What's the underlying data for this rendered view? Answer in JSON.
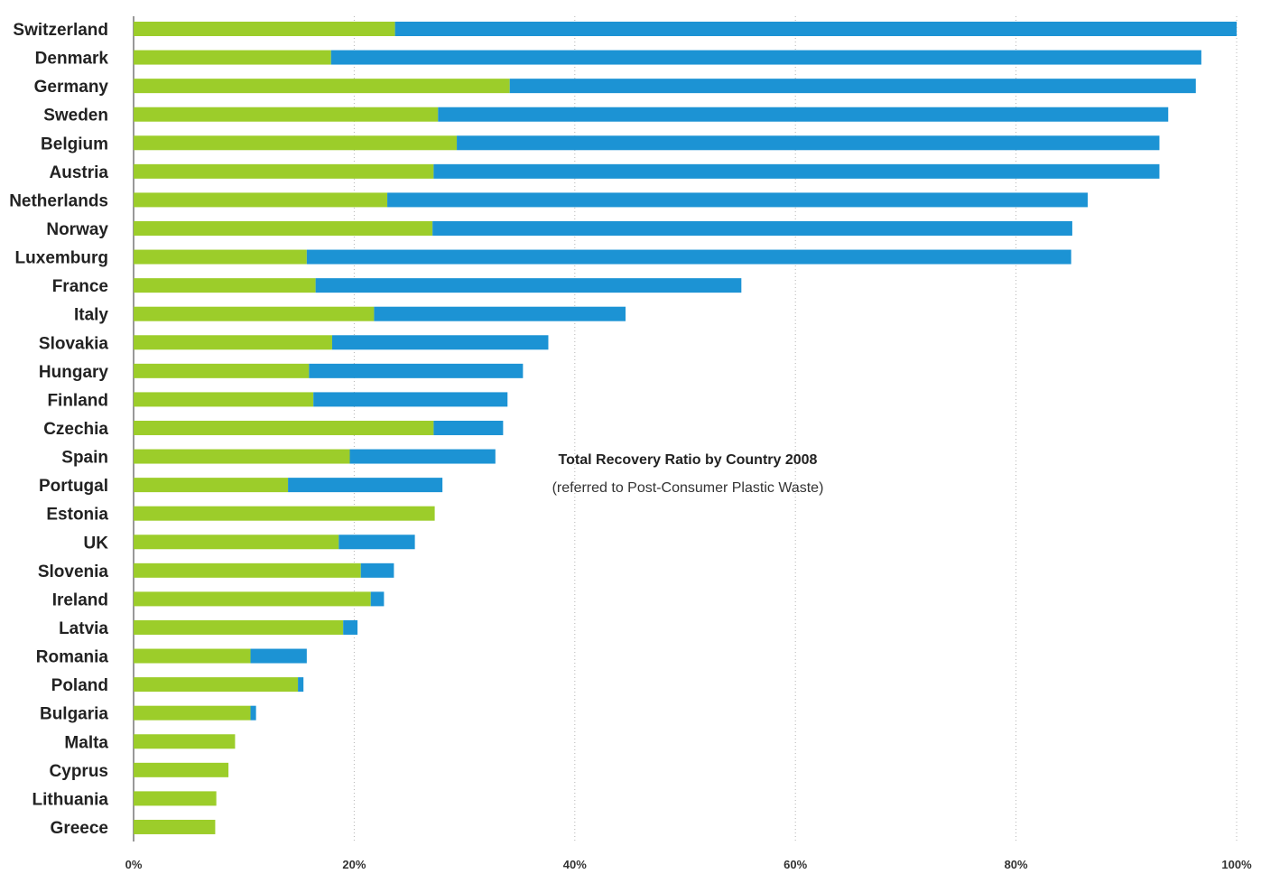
{
  "chart_data": {
    "type": "bar",
    "orientation": "horizontal",
    "stacked": true,
    "title": "Total Recovery Ratio by Country 2008",
    "subtitle": "(referred to Post-Consumer Plastic Waste)",
    "xlim": [
      0,
      100
    ],
    "x_ticks": [
      "0%",
      "20%",
      "40%",
      "60%",
      "80%",
      "100%"
    ],
    "grid": "vertical dotted",
    "categories": [
      "Switzerland",
      "Denmark",
      "Germany",
      "Sweden",
      "Belgium",
      "Austria",
      "Netherlands",
      "Norway",
      "Luxemburg",
      "France",
      "Italy",
      "Slovakia",
      "Hungary",
      "Finland",
      "Czechia",
      "Spain",
      "Portugal",
      "Estonia",
      "UK",
      "Slovenia",
      "Ireland",
      "Latvia",
      "Romania",
      "Poland",
      "Bulgaria",
      "Malta",
      "Cyprus",
      "Lithuania",
      "Greece"
    ],
    "series": [
      {
        "color": "#9ccd2a",
        "values": [
          23.7,
          17.9,
          34.1,
          27.6,
          29.3,
          27.2,
          23.0,
          27.1,
          15.7,
          16.5,
          21.8,
          18.0,
          15.9,
          16.3,
          27.2,
          19.6,
          14.0,
          27.3,
          18.6,
          20.6,
          21.5,
          19.0,
          10.6,
          14.9,
          10.6,
          9.2,
          8.6,
          7.5,
          7.4
        ]
      },
      {
        "color": "#1c93d4",
        "values": [
          76.3,
          78.9,
          62.2,
          66.2,
          63.7,
          65.8,
          63.5,
          58.0,
          69.3,
          38.6,
          22.8,
          19.6,
          19.4,
          17.6,
          6.3,
          13.2,
          14.0,
          0.0,
          6.9,
          3.0,
          1.2,
          1.3,
          5.1,
          0.5,
          0.5,
          0.0,
          0.0,
          0.0,
          0.0
        ]
      }
    ]
  }
}
